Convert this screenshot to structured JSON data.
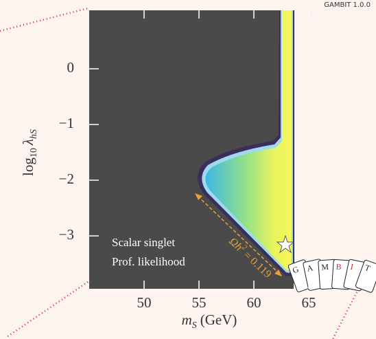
{
  "chart_data": {
    "type": "contour",
    "x_label": {
      "symbol": "m",
      "sub": "S",
      "unit": "(GeV)"
    },
    "y_label": {
      "fn": "log",
      "base": "10",
      "symbol": "λ",
      "sub": "hS"
    },
    "xlim": [
      45,
      69.5
    ],
    "xticks": [
      50,
      55,
      60,
      65
    ],
    "ylim": [
      -3.95,
      1.05
    ],
    "yticks": [
      0,
      {
        "value": -1,
        "label": "−1"
      },
      {
        "value": -2,
        "label": "−2"
      },
      {
        "value": -3,
        "label": "−3"
      }
    ],
    "annotations": {
      "relic": {
        "base": "Ωh",
        "sup": "2",
        "rest": " = 0.119"
      },
      "legend_line1": "Scalar singlet",
      "legend_line2": "Prof. likelihood",
      "version": "GAMBIT 1.0.0"
    },
    "logo": [
      "G",
      "A",
      "M",
      "B",
      "I",
      "T"
    ]
  }
}
